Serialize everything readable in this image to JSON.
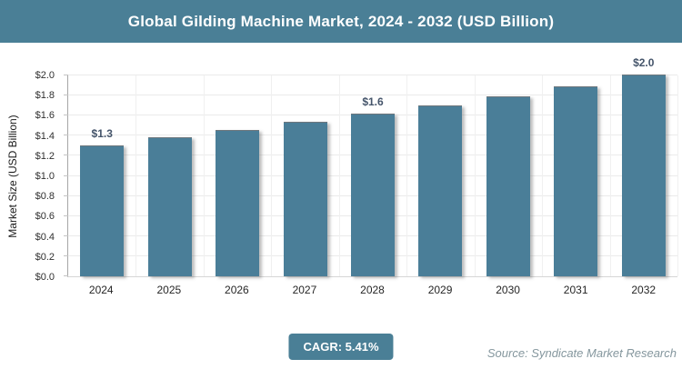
{
  "title": "Global Gilding Machine Market, 2024 - 2032 (USD Billion)",
  "chart_data": {
    "type": "bar",
    "title": "Global Gilding Machine Market, 2024 - 2032 (USD Billion)",
    "categories": [
      "2024",
      "2025",
      "2026",
      "2027",
      "2028",
      "2029",
      "2030",
      "2031",
      "2032"
    ],
    "values": [
      1.3,
      1.38,
      1.45,
      1.53,
      1.61,
      1.69,
      1.78,
      1.88,
      2.0
    ],
    "bar_labels": [
      "$1.3",
      "",
      "",
      "",
      "$1.6",
      "",
      "",
      "",
      "$2.0"
    ],
    "xlabel": "",
    "ylabel": "Market Size (USD Billion)",
    "ylim": [
      0,
      2.0
    ],
    "ytick_step": 0.2,
    "ytick_prefix": "$",
    "ytick_decimals": 1,
    "grid": true,
    "legend": "none"
  },
  "footer": {
    "cagr_label": "CAGR: 5.41%",
    "source": "Source: Syndicate Market Research"
  },
  "colors": {
    "header_bg": "#4A7F96",
    "bar": "#4A7E98",
    "bar_label": "#44546A",
    "badge_bg": "#4A7F96",
    "source_text": "#85979E",
    "gridline": "#EBEBEB",
    "axis_line": "#A6A6A6"
  }
}
